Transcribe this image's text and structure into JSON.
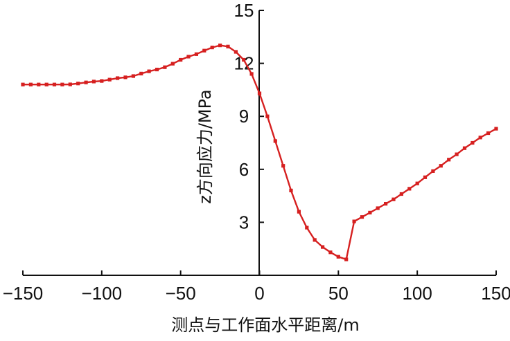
{
  "chart_data": {
    "type": "line",
    "title": "",
    "xlabel": "测点与工作面水平距离/m",
    "ylabel": "z方向应力/MPa",
    "xlim": [
      -150,
      150
    ],
    "ylim": [
      0,
      15
    ],
    "x_ticks": [
      "−150",
      "−100",
      "−50",
      "0",
      "50",
      "100",
      "150"
    ],
    "y_ticks": [
      "3",
      "6",
      "9",
      "12",
      "15"
    ],
    "grid": false,
    "series": [
      {
        "color": "#d62020",
        "marker": "square",
        "x": [
          -150,
          -145,
          -140,
          -135,
          -130,
          -125,
          -120,
          -115,
          -110,
          -105,
          -100,
          -95,
          -90,
          -85,
          -80,
          -75,
          -70,
          -65,
          -60,
          -55,
          -50,
          -45,
          -40,
          -35,
          -30,
          -25,
          -20,
          -15,
          -10,
          -5,
          0,
          5,
          10,
          15,
          20,
          25,
          30,
          35,
          40,
          45,
          50,
          55,
          60,
          65,
          70,
          75,
          80,
          85,
          90,
          95,
          100,
          105,
          110,
          115,
          120,
          125,
          130,
          135,
          140,
          145,
          150
        ],
        "values": [
          10.8,
          10.8,
          10.8,
          10.8,
          10.8,
          10.8,
          10.81,
          10.86,
          10.92,
          10.97,
          11.0,
          11.08,
          11.16,
          11.21,
          11.28,
          11.42,
          11.55,
          11.65,
          11.78,
          11.98,
          12.2,
          12.38,
          12.52,
          12.72,
          12.9,
          13.02,
          12.95,
          12.65,
          12.2,
          11.4,
          10.3,
          9.0,
          7.6,
          6.2,
          4.8,
          3.6,
          2.7,
          2.0,
          1.6,
          1.3,
          1.05,
          0.9,
          3.05,
          3.3,
          3.55,
          3.8,
          4.05,
          4.3,
          4.6,
          4.9,
          5.2,
          5.55,
          5.9,
          6.2,
          6.55,
          6.85,
          7.2,
          7.5,
          7.8,
          8.05,
          8.3
        ]
      }
    ]
  }
}
